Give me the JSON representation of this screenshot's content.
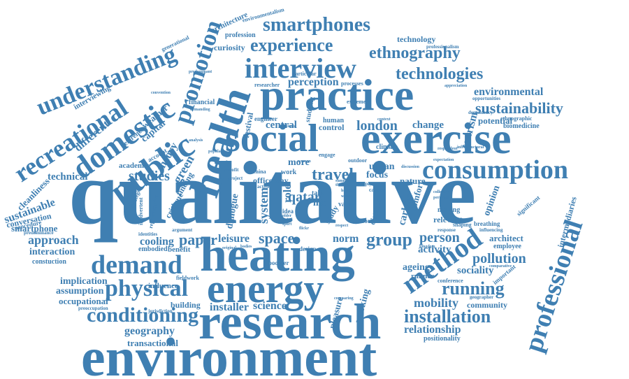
{
  "color": "#3f7fb2",
  "words": {
    "qualitative": "qualitative",
    "environment": "environment",
    "research": "research",
    "heating": "heating",
    "energy": "energy",
    "practice": "practice",
    "social": "social",
    "exercise": "exercise",
    "health": "health",
    "public": "public",
    "domestic": "domestic",
    "recreational": "recreational",
    "understanding": "understanding",
    "promotion": "promotion",
    "interview": "interview",
    "smartphones": "smartphones",
    "experience": "experience",
    "ethnography": "ethnography",
    "technologies": "technologies",
    "consumption": "consumption",
    "sustainability": "sustainability",
    "environmental": "environmental",
    "method": "method",
    "professional": "professional",
    "demand": "demand",
    "physical": "physical",
    "conditioning": "conditioning",
    "installation": "installation",
    "running": "running",
    "mobility": "mobility",
    "relationship": "relationship",
    "geography": "geography",
    "transactional": "transactional",
    "installer": "installer",
    "science": "science",
    "building": "building",
    "space": "space",
    "group": "group",
    "person": "person",
    "activity": "activity",
    "pollution": "pollution",
    "sociality": "sociality",
    "ageing": "ageing",
    "paper": "paper",
    "leisure": "leisure",
    "cooling": "cooling",
    "embodied": "embodied",
    "benefit": "benefit",
    "approach": "approach",
    "interaction": "interaction",
    "constuction": "constuction",
    "implication": "implication",
    "assumption": "assumption",
    "occupational": "occupational",
    "smartphone": "smartphone",
    "sustainable": "sustainable",
    "conversation": "conversation",
    "procedure": "procedure",
    "technical": "technical",
    "studies": "studies",
    "green": "green",
    "theory": "theory",
    "academic": "academic",
    "travel": "travel",
    "more": "more",
    "urban": "urban",
    "focus": "focus",
    "london": "london",
    "change": "change",
    "central": "central",
    "perception": "perception",
    "tourism": "tourism",
    "architect": "architect",
    "employee": "employee",
    "community": "community",
    "positionality": "positionality",
    "cleanliness": "cleanliness",
    "different": "different",
    "capital": "capital",
    "weather": "weather",
    "reference": "reference",
    "interviewing": "interviewing",
    "curiosity": "curiosity",
    "profession": "profession",
    "architecture": "architecture",
    "environmentalism": "environmentalism",
    "generational": "generational",
    "technology": "technology",
    "particular": "particular",
    "processes": "processes",
    "researcher": "researcher",
    "financial": "financial",
    "human": "human",
    "control": "control",
    "engineer": "engineer",
    "festival": "festival",
    "norm": "norm",
    "way": "way",
    "office": "office",
    "work": "work",
    "qatar": "qatar",
    "role": "role",
    "system": "system",
    "dialogue": "dialogue",
    "nature": "nature",
    "carbon": "carbon",
    "comfort": "comfort",
    "opinion": "opinion",
    "breathing": "breathing",
    "potential": "potential",
    "ethnographic": "ethnographic",
    "biomedicine": "biomedicine",
    "intermediaries": "intermediaries",
    "significant": "significant",
    "fieldwork": "fieldwork",
    "influence": "influence",
    "identities": "identities",
    "climate": "climate",
    "relevant": "relevant",
    "making": "making",
    "shaping": "shaping",
    "runner": "runner",
    "conference": "conference",
    "geographer": "geographer",
    "working": "working",
    "pleasure": "pleasure",
    "boomer": "boomer",
    "study": "study",
    "life": "life",
    "talk": "talk",
    "value": "value",
    "idea": "idea",
    "distance": "distance",
    "resource": "resource",
    "extreme": "extreme",
    "studying": "studying",
    "accounts": "accounts",
    "engage": "engage",
    "outdoor": "outdoor",
    "china": "china",
    "active": "active",
    "design": "design",
    "preoccupation": "preoccupation",
    "jurisdiction": "jurisdiction",
    "strategies": "strategies",
    "representative": "representative",
    "argument": "argument",
    "finding": "finding",
    "critique": "critique",
    "predominance": "predominance",
    "account": "account",
    "convention": "convention",
    "dependency": "dependency",
    "opportunities": "opportunities",
    "professionalism": "professionalism",
    "cancer": "cancer",
    "response": "response",
    "comparing": "comparing",
    "important": "important",
    "infrastructural": "infrastructural",
    "discussion": "discussion",
    "supply": "supply",
    "project": "project",
    "reflexive": "reflexive",
    "behaviour": "behaviour",
    "appreciation": "appreciation",
    "expectation": "expectation",
    "respondent": "respondent",
    "modest": "modest",
    "concern": "concern",
    "water": "water",
    "context": "context",
    "dimension": "dimension",
    "thermal": "thermal",
    "summer": "summer",
    "retrofit": "retrofit",
    "analysis": "analysis",
    "popular": "popular",
    "opportunity": "opportunity",
    "healthy": "healthy",
    "reliance": "reliance",
    "positive": "positive",
    "predominant": "predominant",
    "inadvertent": "inadvertent",
    "demanding": "demanding",
    "interest": "interest",
    "collective": "collective",
    "personal": "personal",
    "interviewee": "interviewee",
    "kingdom": "kingdom",
    "influencing": "influencing",
    "woman": "woman",
    "mortgage": "mortgage",
    "older": "older",
    "respect": "respect",
    "dubai": "dubai",
    "sport": "sport",
    "flickr": "flickr",
    "future": "future",
    "fitness": "fitness",
    "internet": "internet",
    "original": "original",
    "bodies": "bodies",
    "visual": "visual",
    "group2": "group",
    "sensitive": "sensitive",
    "comparative": "comparative",
    "rebound": "rebound",
    "enrich": "enrich",
    "exploration": "exploration",
    "installed": "installed",
    "emission": "emission",
    "shopping": "shopping",
    "authority": "authority",
    "chapter": "chapter",
    "engineer2": "engineering",
    "national": "national",
    "advocating": "advocating",
    "evaluation": "evaluation",
    "fluency": "fluency",
    "attitude": "attitude",
    "language": "language",
    "local": "local",
    "cultural": "cultural",
    "population": "population",
    "generating": "generating",
    "sense": "sense"
  }
}
